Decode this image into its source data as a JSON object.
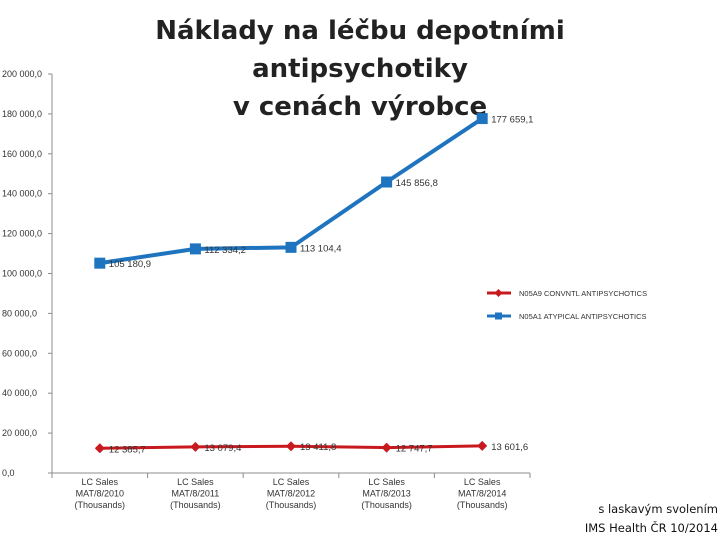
{
  "title": {
    "line1": "Náklady na léčbu depotními antipsychotiky",
    "line2": "v cenách výrobce"
  },
  "credit": {
    "line1": "s laskavým svolením",
    "line2": "IMS Health ČR 10/2014"
  },
  "colors": {
    "conv": "#c8191e",
    "atyp": "#1f74c0",
    "axis": "#8c8c8c"
  },
  "chart_data": {
    "type": "line",
    "categories": [
      [
        "LC Sales",
        "MAT/8/2010",
        "(Thousands)"
      ],
      [
        "LC Sales",
        "MAT/8/2011",
        "(Thousands)"
      ],
      [
        "LC Sales",
        "MAT/8/2012",
        "(Thousands)"
      ],
      [
        "LC Sales",
        "MAT/8/2013",
        "(Thousands)"
      ],
      [
        "LC Sales",
        "MAT/8/2014",
        "(Thousands)"
      ]
    ],
    "ylim": [
      0,
      200000
    ],
    "yticks": [
      "0,0",
      "20 000,0",
      "40 000,0",
      "60 000,0",
      "80 000,0",
      "100 000,0",
      "120 000,0",
      "140 000,0",
      "160 000,0",
      "180 000,0",
      "200 000,0"
    ],
    "grid": false,
    "legend_position": "right",
    "series": [
      {
        "name": "N05A9 CONVNTL ANTIPSYCHOTICS",
        "color_key": "conv",
        "marker": "diamond",
        "values": [
          12385.7,
          13079.4,
          13411.8,
          12747.7,
          13601.6
        ],
        "labels": [
          "12 385,7",
          "13 079,4",
          "13 411,8",
          "12 747,7",
          "13 601,6"
        ]
      },
      {
        "name": "N05A1 ATYPICAL ANTIPSYCHOTICS",
        "color_key": "atyp",
        "marker": "square",
        "values": [
          105180.9,
          112334.2,
          113104.4,
          145856.8,
          177659.1
        ],
        "labels": [
          "105 180,9",
          "112 334,2",
          "113 104,4",
          "145 856,8",
          "177 659,1"
        ]
      }
    ]
  }
}
